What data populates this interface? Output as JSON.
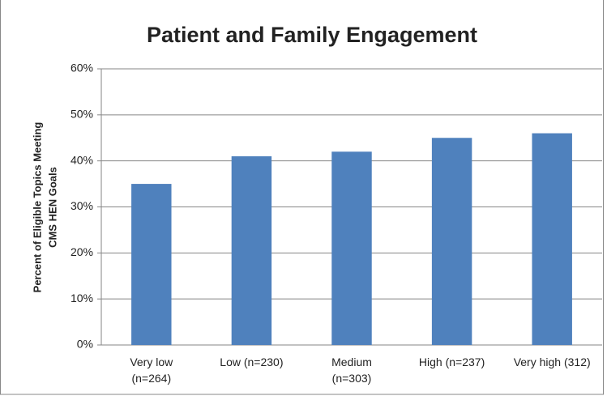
{
  "chart_data": {
    "type": "bar",
    "title": "Patient and Family Engagement",
    "ylabel": [
      "Percent of Eligible Topics Meeting",
      "CMS HEN Goals"
    ],
    "categories": [
      "Very low\n(n=264)",
      "Low (n=230)",
      "Medium\n(n=303)",
      "High (n=237)",
      "Very high (312)"
    ],
    "values": [
      35,
      41,
      42,
      45,
      46
    ],
    "color": "#4f81bd",
    "ylim": [
      0,
      60
    ],
    "yticks": [
      {
        "value": 0,
        "label": "0%"
      },
      {
        "value": 10,
        "label": "10%"
      },
      {
        "value": 20,
        "label": "20%"
      },
      {
        "value": 30,
        "label": "30%"
      },
      {
        "value": 40,
        "label": "40%"
      },
      {
        "value": 50,
        "label": "50%"
      },
      {
        "value": 60,
        "label": "60%"
      }
    ],
    "grid": true
  }
}
